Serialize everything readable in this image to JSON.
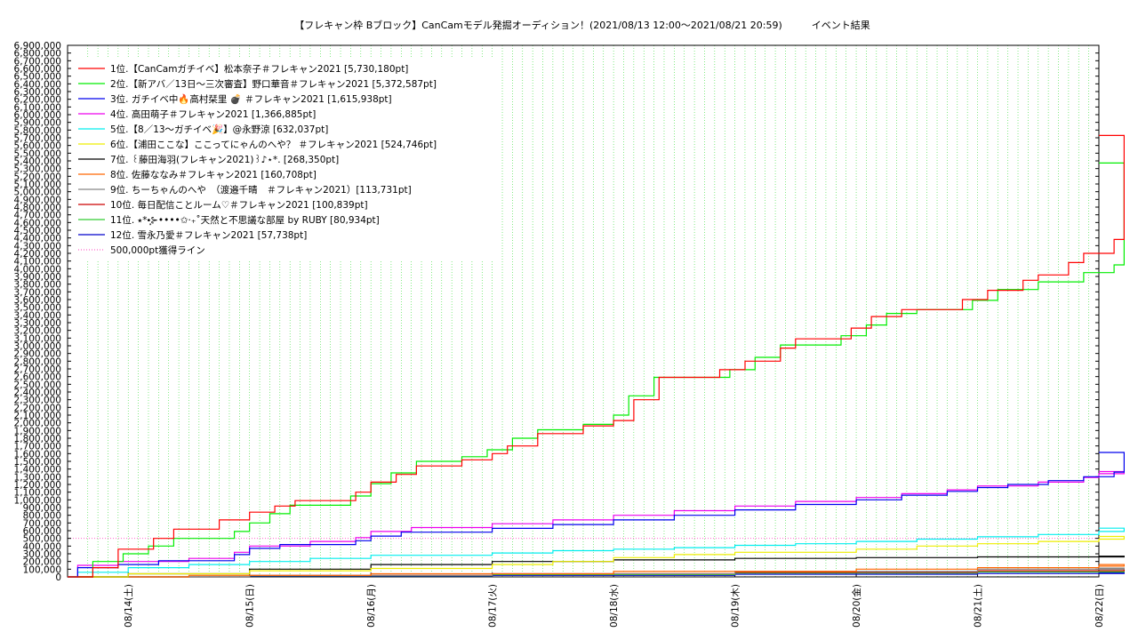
{
  "chart_data": {
    "type": "line",
    "title": "【フレキャン枠 Bブロック】CanCamモデル発掘オーディション！(2021/08/13 12:00〜2021/08/21 20:59)　　　イベント結果",
    "xlabel": "",
    "ylabel": "",
    "xlim": [
      "2021-08-13 12:00",
      "2021-08-22 00:00"
    ],
    "ylim": [
      0,
      6900000
    ],
    "y_tick_step": 100000,
    "x_ticks": [
      "08/14(土)",
      "08/15(日)",
      "08/16(月)",
      "08/17(火)",
      "08/18(水)",
      "08/19(木)",
      "08/20(金)",
      "08/21(土)",
      "08/22(日)"
    ],
    "grid": true,
    "legend_position": "top-left",
    "series": [
      {
        "name": "1位.【CanCamガチイベ】松本奈子＃フレキャン2021 [5,730,180pt]",
        "color": "#ff0000",
        "points": [
          [
            "2021-08-13 12:00",
            0
          ],
          [
            "2021-08-13 17:00",
            120000
          ],
          [
            "2021-08-13 22:00",
            360000
          ],
          [
            "2021-08-14 05:00",
            500000
          ],
          [
            "2021-08-14 09:00",
            620000
          ],
          [
            "2021-08-14 18:00",
            740000
          ],
          [
            "2021-08-15 00:00",
            840000
          ],
          [
            "2021-08-15 05:00",
            920000
          ],
          [
            "2021-08-15 09:00",
            990000
          ],
          [
            "2021-08-15 21:00",
            1100000
          ],
          [
            "2021-08-16 00:00",
            1230000
          ],
          [
            "2021-08-16 05:00",
            1330000
          ],
          [
            "2021-08-16 09:00",
            1440000
          ],
          [
            "2021-08-16 18:00",
            1520000
          ],
          [
            "2021-08-17 00:00",
            1600000
          ],
          [
            "2021-08-17 03:00",
            1700000
          ],
          [
            "2021-08-17 09:00",
            1860000
          ],
          [
            "2021-08-17 18:00",
            1960000
          ],
          [
            "2021-08-18 00:00",
            2030000
          ],
          [
            "2021-08-18 04:00",
            2300000
          ],
          [
            "2021-08-18 09:00",
            2590000
          ],
          [
            "2021-08-18 21:00",
            2690000
          ],
          [
            "2021-08-19 02:00",
            2800000
          ],
          [
            "2021-08-19 09:00",
            2970000
          ],
          [
            "2021-08-19 12:00",
            3090000
          ],
          [
            "2021-08-19 23:00",
            3230000
          ],
          [
            "2021-08-20 03:00",
            3380000
          ],
          [
            "2021-08-20 09:00",
            3470000
          ],
          [
            "2021-08-20 21:00",
            3600000
          ],
          [
            "2021-08-21 02:00",
            3720000
          ],
          [
            "2021-08-21 09:00",
            3850000
          ],
          [
            "2021-08-21 12:00",
            3920000
          ],
          [
            "2021-08-21 18:00",
            4080000
          ],
          [
            "2021-08-21 21:00",
            4200000
          ],
          [
            "2021-08-22 03:00",
            4380000
          ],
          [
            "2021-08-22 05:00",
            5730180
          ]
        ]
      },
      {
        "name": "2位.【新アバ／13日〜三次審査】野口華音＃フレキャン2021 [5,372,587pt]",
        "color": "#00ee00",
        "points": [
          [
            "2021-08-13 12:00",
            0
          ],
          [
            "2021-08-13 17:00",
            200000
          ],
          [
            "2021-08-13 23:00",
            300000
          ],
          [
            "2021-08-14 04:00",
            400000
          ],
          [
            "2021-08-14 09:00",
            500000
          ],
          [
            "2021-08-14 21:00",
            590000
          ],
          [
            "2021-08-15 00:00",
            700000
          ],
          [
            "2021-08-15 04:00",
            820000
          ],
          [
            "2021-08-15 08:00",
            930000
          ],
          [
            "2021-08-15 20:00",
            1050000
          ],
          [
            "2021-08-16 00:00",
            1210000
          ],
          [
            "2021-08-16 04:00",
            1350000
          ],
          [
            "2021-08-16 09:00",
            1500000
          ],
          [
            "2021-08-16 18:00",
            1560000
          ],
          [
            "2021-08-16 23:00",
            1650000
          ],
          [
            "2021-08-17 04:00",
            1800000
          ],
          [
            "2021-08-17 09:00",
            1910000
          ],
          [
            "2021-08-17 18:00",
            1980000
          ],
          [
            "2021-08-18 00:00",
            2100000
          ],
          [
            "2021-08-18 03:00",
            2350000
          ],
          [
            "2021-08-18 08:00",
            2590000
          ],
          [
            "2021-08-18 23:00",
            2690000
          ],
          [
            "2021-08-19 04:00",
            2850000
          ],
          [
            "2021-08-19 09:00",
            3010000
          ],
          [
            "2021-08-19 21:00",
            3130000
          ],
          [
            "2021-08-20 02:00",
            3270000
          ],
          [
            "2021-08-20 06:00",
            3420000
          ],
          [
            "2021-08-20 12:00",
            3470000
          ],
          [
            "2021-08-20 23:00",
            3590000
          ],
          [
            "2021-08-21 04:00",
            3730000
          ],
          [
            "2021-08-21 12:00",
            3830000
          ],
          [
            "2021-08-21 21:00",
            3950000
          ],
          [
            "2021-08-22 03:00",
            4050000
          ],
          [
            "2021-08-22 05:00",
            5372587
          ]
        ]
      },
      {
        "name": "3位. ガチイベ中🔥高村栞里 💣 ＃フレキャン2021 [1,615,938pt]",
        "color": "#0000ee",
        "points": [
          [
            "2021-08-13 12:00",
            0
          ],
          [
            "2021-08-13 14:00",
            120000
          ],
          [
            "2021-08-13 22:00",
            160000
          ],
          [
            "2021-08-14 06:00",
            210000
          ],
          [
            "2021-08-14 21:00",
            290000
          ],
          [
            "2021-08-15 00:00",
            370000
          ],
          [
            "2021-08-15 06:00",
            420000
          ],
          [
            "2021-08-15 21:00",
            470000
          ],
          [
            "2021-08-16 00:00",
            530000
          ],
          [
            "2021-08-16 06:00",
            580000
          ],
          [
            "2021-08-17 00:00",
            630000
          ],
          [
            "2021-08-17 12:00",
            680000
          ],
          [
            "2021-08-18 00:00",
            740000
          ],
          [
            "2021-08-18 12:00",
            800000
          ],
          [
            "2021-08-19 00:00",
            870000
          ],
          [
            "2021-08-19 12:00",
            940000
          ],
          [
            "2021-08-20 00:00",
            1000000
          ],
          [
            "2021-08-20 09:00",
            1060000
          ],
          [
            "2021-08-20 18:00",
            1110000
          ],
          [
            "2021-08-21 00:00",
            1160000
          ],
          [
            "2021-08-21 06:00",
            1200000
          ],
          [
            "2021-08-21 14:00",
            1250000
          ],
          [
            "2021-08-21 21:00",
            1300000
          ],
          [
            "2021-08-22 03:00",
            1360000
          ],
          [
            "2021-08-22 05:00",
            1615938
          ]
        ]
      },
      {
        "name": "4位. 高田萌子＃フレキャン2021 [1,366,885pt]",
        "color": "#ee00ee",
        "points": [
          [
            "2021-08-13 12:00",
            0
          ],
          [
            "2021-08-13 14:00",
            150000
          ],
          [
            "2021-08-13 22:00",
            200000
          ],
          [
            "2021-08-14 12:00",
            240000
          ],
          [
            "2021-08-14 21:00",
            320000
          ],
          [
            "2021-08-15 00:00",
            400000
          ],
          [
            "2021-08-15 12:00",
            460000
          ],
          [
            "2021-08-15 21:00",
            510000
          ],
          [
            "2021-08-16 00:00",
            590000
          ],
          [
            "2021-08-16 08:00",
            640000
          ],
          [
            "2021-08-17 00:00",
            690000
          ],
          [
            "2021-08-17 12:00",
            740000
          ],
          [
            "2021-08-18 00:00",
            800000
          ],
          [
            "2021-08-18 12:00",
            860000
          ],
          [
            "2021-08-19 00:00",
            920000
          ],
          [
            "2021-08-19 12:00",
            980000
          ],
          [
            "2021-08-20 00:00",
            1030000
          ],
          [
            "2021-08-20 09:00",
            1080000
          ],
          [
            "2021-08-20 18:00",
            1130000
          ],
          [
            "2021-08-21 00:00",
            1180000
          ],
          [
            "2021-08-21 12:00",
            1230000
          ],
          [
            "2021-08-21 21:00",
            1290000
          ],
          [
            "2021-08-22 00:00",
            1340000
          ],
          [
            "2021-08-22 05:00",
            1366885
          ]
        ]
      },
      {
        "name": "5位.【8／13〜ガチイベ🎉】@永野涼 [632,037pt]",
        "color": "#00eeee",
        "points": [
          [
            "2021-08-13 12:00",
            0
          ],
          [
            "2021-08-13 14:00",
            60000
          ],
          [
            "2021-08-14 00:00",
            120000
          ],
          [
            "2021-08-14 12:00",
            160000
          ],
          [
            "2021-08-15 00:00",
            200000
          ],
          [
            "2021-08-15 12:00",
            240000
          ],
          [
            "2021-08-16 00:00",
            280000
          ],
          [
            "2021-08-17 00:00",
            310000
          ],
          [
            "2021-08-17 12:00",
            340000
          ],
          [
            "2021-08-18 00:00",
            360000
          ],
          [
            "2021-08-18 12:00",
            380000
          ],
          [
            "2021-08-19 00:00",
            410000
          ],
          [
            "2021-08-19 12:00",
            430000
          ],
          [
            "2021-08-20 00:00",
            460000
          ],
          [
            "2021-08-20 12:00",
            490000
          ],
          [
            "2021-08-21 00:00",
            520000
          ],
          [
            "2021-08-21 12:00",
            550000
          ],
          [
            "2021-08-22 00:00",
            590000
          ],
          [
            "2021-08-22 05:00",
            632037
          ]
        ]
      },
      {
        "name": "6位.【浦田ここな】ここってにゃんのへや？ ＃フレキャン2021 [524,746pt]",
        "color": "#eeee00",
        "points": [
          [
            "2021-08-13 12:00",
            0
          ],
          [
            "2021-08-14 00:00",
            40000
          ],
          [
            "2021-08-15 00:00",
            80000
          ],
          [
            "2021-08-16 00:00",
            110000
          ],
          [
            "2021-08-17 00:00",
            160000
          ],
          [
            "2021-08-17 12:00",
            200000
          ],
          [
            "2021-08-18 00:00",
            250000
          ],
          [
            "2021-08-18 12:00",
            290000
          ],
          [
            "2021-08-19 00:00",
            320000
          ],
          [
            "2021-08-20 00:00",
            360000
          ],
          [
            "2021-08-20 12:00",
            400000
          ],
          [
            "2021-08-21 00:00",
            430000
          ],
          [
            "2021-08-21 12:00",
            460000
          ],
          [
            "2021-08-22 00:00",
            490000
          ],
          [
            "2021-08-22 05:00",
            524746
          ]
        ]
      },
      {
        "name": "7位. ꒰藤田海羽(フレキャン2021)꒱♪⋆*. [268,350pt]",
        "color": "#000000",
        "points": [
          [
            "2021-08-13 12:00",
            0
          ],
          [
            "2021-08-14 00:00",
            40000
          ],
          [
            "2021-08-15 00:00",
            100000
          ],
          [
            "2021-08-16 00:00",
            160000
          ],
          [
            "2021-08-17 00:00",
            200000
          ],
          [
            "2021-08-18 00:00",
            220000
          ],
          [
            "2021-08-19 00:00",
            240000
          ],
          [
            "2021-08-20 00:00",
            250000
          ],
          [
            "2021-08-21 00:00",
            260000
          ],
          [
            "2021-08-22 05:00",
            268350
          ]
        ]
      },
      {
        "name": "8位. 佐藤ななみ＃フレキャン2021 [160,708pt]",
        "color": "#ff6600",
        "points": [
          [
            "2021-08-13 12:00",
            0
          ],
          [
            "2021-08-14 12:00",
            20000
          ],
          [
            "2021-08-16 00:00",
            40000
          ],
          [
            "2021-08-18 00:00",
            70000
          ],
          [
            "2021-08-20 00:00",
            100000
          ],
          [
            "2021-08-21 00:00",
            120000
          ],
          [
            "2021-08-22 00:00",
            140000
          ],
          [
            "2021-08-22 05:00",
            160708
          ]
        ]
      },
      {
        "name": "9位. ちーちゃんのへや　（渡邉千晴　＃フレキャン2021）[113,731pt]",
        "color": "#888888",
        "points": [
          [
            "2021-08-13 12:00",
            0
          ],
          [
            "2021-08-15 00:00",
            20000
          ],
          [
            "2021-08-17 00:00",
            40000
          ],
          [
            "2021-08-19 00:00",
            70000
          ],
          [
            "2021-08-21 00:00",
            100000
          ],
          [
            "2021-08-22 05:00",
            113731
          ]
        ]
      },
      {
        "name": "10位. 毎日配信ことルーム♡＃フレキャン2021 [100,839pt]",
        "color": "#cc0000",
        "points": [
          [
            "2021-08-13 12:00",
            0
          ],
          [
            "2021-08-15 00:00",
            20000
          ],
          [
            "2021-08-17 00:00",
            40000
          ],
          [
            "2021-08-19 00:00",
            60000
          ],
          [
            "2021-08-21 00:00",
            80000
          ],
          [
            "2021-08-22 05:00",
            100839
          ]
        ]
      },
      {
        "name": "11位. ⭑*•̩̩͙⊱••••✩‧₊˚天然と不思議な部屋 by RUBY [80,934pt]",
        "color": "#33cc33",
        "points": [
          [
            "2021-08-13 12:00",
            0
          ],
          [
            "2021-08-15 00:00",
            15000
          ],
          [
            "2021-08-17 00:00",
            30000
          ],
          [
            "2021-08-19 00:00",
            50000
          ],
          [
            "2021-08-21 00:00",
            65000
          ],
          [
            "2021-08-22 05:00",
            80934
          ]
        ]
      },
      {
        "name": "12位. 雪永乃愛＃フレキャン2021 [57,738pt]",
        "color": "#0000cc",
        "points": [
          [
            "2021-08-13 12:00",
            0
          ],
          [
            "2021-08-15 00:00",
            10000
          ],
          [
            "2021-08-17 00:00",
            20000
          ],
          [
            "2021-08-19 00:00",
            35000
          ],
          [
            "2021-08-21 00:00",
            45000
          ],
          [
            "2021-08-22 05:00",
            57738
          ]
        ]
      }
    ],
    "reference_line": {
      "name": "500,000pt獲得ライン",
      "value": 500000,
      "color": "#ff66cc",
      "style": "dotted"
    }
  }
}
